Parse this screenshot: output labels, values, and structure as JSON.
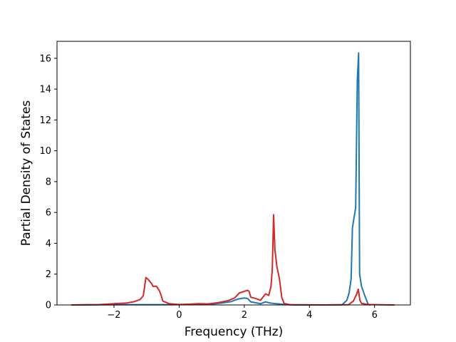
{
  "chart_data": {
    "type": "line",
    "title": "",
    "xlabel": "Frequency (THz)",
    "ylabel": "Partial Density of States",
    "xlim": [
      -3.75,
      7.1
    ],
    "ylim": [
      0,
      17.1
    ],
    "xticks": [
      -2,
      0,
      2,
      4,
      6
    ],
    "xtick_labels": [
      "−2",
      "0",
      "2",
      "4",
      "6"
    ],
    "yticks": [
      0,
      2,
      4,
      6,
      8,
      10,
      12,
      14,
      16
    ],
    "ytick_labels": [
      "0",
      "2",
      "4",
      "6",
      "8",
      "10",
      "12",
      "14",
      "16"
    ],
    "grid": false,
    "legend": "none",
    "series": [
      {
        "color": "#1f77b4",
        "points": [
          [
            -3.3,
            0
          ],
          [
            -2.5,
            0.01
          ],
          [
            -1.5,
            0.02
          ],
          [
            -0.5,
            0.02
          ],
          [
            0.5,
            0.03
          ],
          [
            1.0,
            0.06
          ],
          [
            1.3,
            0.12
          ],
          [
            1.6,
            0.22
          ],
          [
            1.8,
            0.38
          ],
          [
            2.0,
            0.45
          ],
          [
            2.1,
            0.42
          ],
          [
            2.2,
            0.2
          ],
          [
            2.4,
            0.12
          ],
          [
            2.5,
            0.08
          ],
          [
            2.65,
            0.2
          ],
          [
            2.8,
            0.12
          ],
          [
            2.9,
            0.1
          ],
          [
            3.1,
            0.06
          ],
          [
            3.3,
            0.02
          ],
          [
            3.6,
            0
          ],
          [
            4.5,
            0
          ],
          [
            5.0,
            0.01
          ],
          [
            5.15,
            0.3
          ],
          [
            5.22,
            0.8
          ],
          [
            5.28,
            1.7
          ],
          [
            5.32,
            5.0
          ],
          [
            5.38,
            5.8
          ],
          [
            5.42,
            6.3
          ],
          [
            5.47,
            14.6
          ],
          [
            5.51,
            16.35
          ],
          [
            5.54,
            2.0
          ],
          [
            5.6,
            1.2
          ],
          [
            5.7,
            0.6
          ],
          [
            5.8,
            0.05
          ],
          [
            5.85,
            0
          ]
        ]
      },
      {
        "color": "#d62728",
        "points": [
          [
            -3.3,
            0
          ],
          [
            -2.5,
            0.02
          ],
          [
            -2.0,
            0.08
          ],
          [
            -1.6,
            0.13
          ],
          [
            -1.4,
            0.2
          ],
          [
            -1.2,
            0.35
          ],
          [
            -1.1,
            0.6
          ],
          [
            -1.02,
            1.78
          ],
          [
            -0.95,
            1.65
          ],
          [
            -0.85,
            1.4
          ],
          [
            -0.8,
            1.2
          ],
          [
            -0.7,
            1.22
          ],
          [
            -0.6,
            0.9
          ],
          [
            -0.55,
            0.6
          ],
          [
            -0.5,
            0.25
          ],
          [
            -0.3,
            0.08
          ],
          [
            0.0,
            0.03
          ],
          [
            0.3,
            0.05
          ],
          [
            0.6,
            0.08
          ],
          [
            0.9,
            0.07
          ],
          [
            1.2,
            0.15
          ],
          [
            1.5,
            0.28
          ],
          [
            1.7,
            0.45
          ],
          [
            1.85,
            0.78
          ],
          [
            2.0,
            0.88
          ],
          [
            2.1,
            0.95
          ],
          [
            2.15,
            0.88
          ],
          [
            2.2,
            0.5
          ],
          [
            2.35,
            0.42
          ],
          [
            2.5,
            0.3
          ],
          [
            2.65,
            0.72
          ],
          [
            2.75,
            0.62
          ],
          [
            2.82,
            1.2
          ],
          [
            2.86,
            2.3
          ],
          [
            2.9,
            5.85
          ],
          [
            2.94,
            3.6
          ],
          [
            3.0,
            2.5
          ],
          [
            3.08,
            1.7
          ],
          [
            3.15,
            0.5
          ],
          [
            3.22,
            0.1
          ],
          [
            3.4,
            0.02
          ],
          [
            4.5,
            0
          ],
          [
            5.2,
            0.02
          ],
          [
            5.35,
            0.25
          ],
          [
            5.45,
            0.7
          ],
          [
            5.5,
            1.02
          ],
          [
            5.55,
            0.3
          ],
          [
            5.6,
            0.1
          ],
          [
            5.8,
            0.03
          ],
          [
            6.2,
            0.01
          ],
          [
            6.6,
            0
          ]
        ]
      }
    ]
  }
}
